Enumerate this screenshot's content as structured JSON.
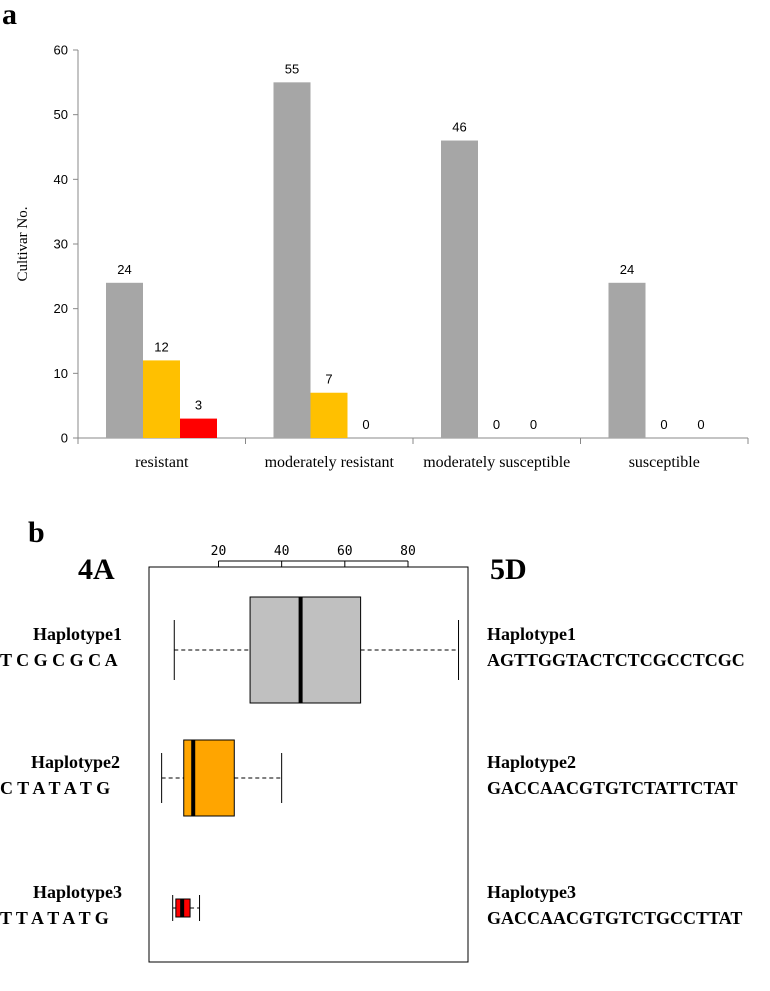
{
  "chart_data": [
    {
      "panel": "a",
      "type": "bar",
      "ylabel": "Cultivar No.",
      "xlabel": "",
      "ylim": [
        0,
        60
      ],
      "yticks": [
        0,
        10,
        20,
        30,
        40,
        50,
        60
      ],
      "categories": [
        "resistant",
        "moderately resistant",
        "moderately susceptible",
        "susceptible"
      ],
      "series": [
        {
          "name": "Haplotype1",
          "color": "#a6a6a6",
          "values": [
            24,
            55,
            46,
            24
          ]
        },
        {
          "name": "Haplotype2",
          "color": "#ffc000",
          "values": [
            12,
            7,
            0,
            0
          ]
        },
        {
          "name": "Haplotype3",
          "color": "#ff0000",
          "values": [
            3,
            0,
            0,
            0
          ]
        }
      ]
    },
    {
      "panel": "b",
      "type": "boxplot",
      "xticks": [
        20,
        40,
        60,
        80
      ],
      "xlim": [
        -2,
        99
      ],
      "left_header": "4A",
      "right_header": "5D",
      "groups": [
        {
          "name": "Haplotype1",
          "seq_4A": "T C G C G C A",
          "seq_5D": "AGTTGGTACTCTCGCCTCGC",
          "color": "#c0c0c0",
          "min": 6,
          "q1": 30,
          "median": 46,
          "q3": 65,
          "max": 96
        },
        {
          "name": "Haplotype2",
          "seq_4A": "C T A T A T G",
          "seq_5D": "GACCAACGTGTCTATTCTAT",
          "color": "#ffa500",
          "min": 2,
          "q1": 9,
          "median": 12,
          "q3": 25,
          "max": 40
        },
        {
          "name": "Haplotype3",
          "seq_4A": "T T A T A T G",
          "seq_5D": "GACCAACGTGTCTGCCTTAT",
          "color": "#ff0000",
          "min": 5.5,
          "q1": 6.5,
          "median": 8.5,
          "q3": 11,
          "max": 14
        }
      ]
    }
  ],
  "labels": {
    "panel_a": "a",
    "panel_b": "b"
  }
}
